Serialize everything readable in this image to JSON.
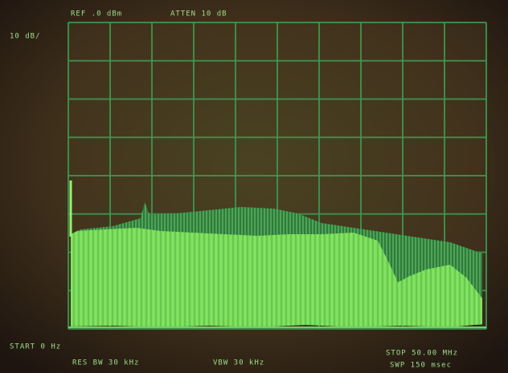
{
  "header": {
    "ref": "REF .0 dBm",
    "atten": "ATTEN 10 dB",
    "scale": "10 dB/"
  },
  "footer": {
    "start": "START 0 Hz",
    "res_bw": "RES BW 30 kHz",
    "vbw": "VBW 30 kHz",
    "stop": "STOP 50.00 MHz",
    "swp": "SWP 150 msec"
  }
}
